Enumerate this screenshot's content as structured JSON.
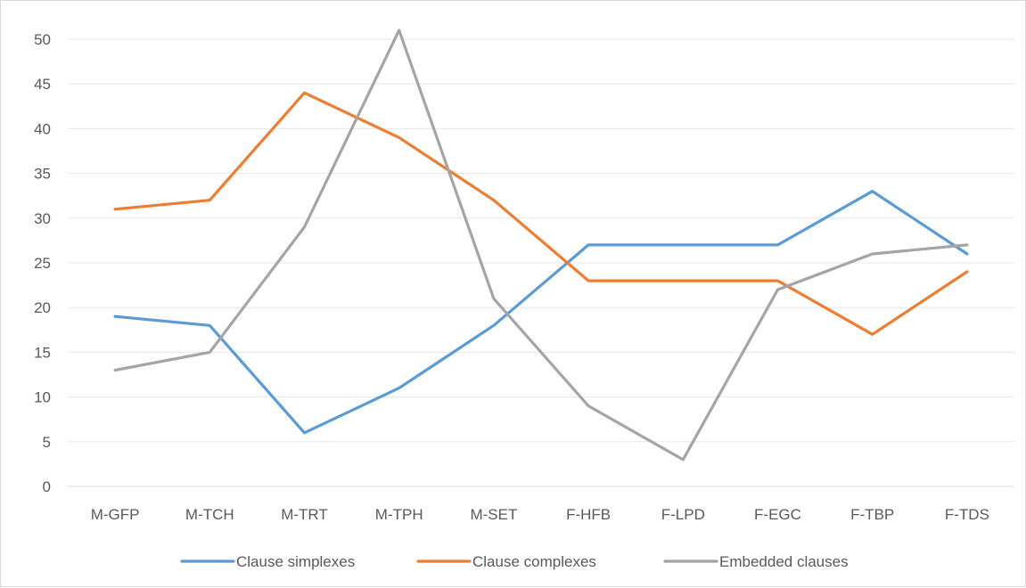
{
  "chart_data": {
    "type": "line",
    "title": "",
    "xlabel": "",
    "ylabel": "",
    "categories": [
      "M-GFP",
      "M-TCH",
      "M-TRT",
      "M-TPH",
      "M-SET",
      "F-HFB",
      "F-LPD",
      "F-EGC",
      "F-TBP",
      "F-TDS"
    ],
    "ylim": [
      0,
      50
    ],
    "yticks": [
      0,
      5,
      10,
      15,
      20,
      25,
      30,
      35,
      40,
      45,
      50
    ],
    "grid": true,
    "legend_position": "bottom",
    "series": [
      {
        "name": "Clause simplexes",
        "color": "#5b9bd5",
        "values": [
          19,
          18,
          6,
          11,
          18,
          27,
          27,
          27,
          33,
          26
        ]
      },
      {
        "name": "Clause complexes",
        "color": "#ed7d31",
        "values": [
          31,
          32,
          44,
          39,
          32,
          23,
          23,
          23,
          17,
          24
        ]
      },
      {
        "name": "Embedded clauses",
        "color": "#a5a5a5",
        "values": [
          13,
          15,
          29,
          51,
          21,
          9,
          3,
          22,
          26,
          27
        ]
      }
    ]
  }
}
